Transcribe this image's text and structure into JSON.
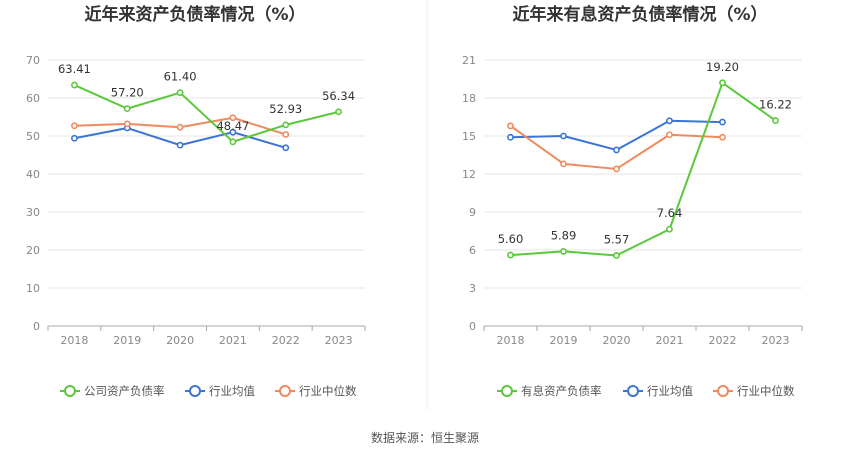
{
  "source_label": "数据来源：恒生聚源",
  "chart_data": [
    {
      "type": "line",
      "title": "近年来资产负债率情况（%）",
      "x": [
        "2018",
        "2019",
        "2020",
        "2021",
        "2022",
        "2023"
      ],
      "ylim": [
        0,
        70
      ],
      "yticks": [
        "0",
        "10",
        "20",
        "30",
        "40",
        "50",
        "60",
        "70"
      ],
      "grid": true,
      "legend_position": "bottom",
      "series": [
        {
          "name": "公司资产负债率",
          "color": "#5ac83a",
          "values": [
            63.41,
            57.2,
            61.4,
            48.47,
            52.93,
            56.34
          ],
          "labels": [
            "63.41",
            "57.20",
            "61.40",
            "48.47",
            "52.93",
            "56.34"
          ]
        },
        {
          "name": "行业均值",
          "color": "#3b74d6",
          "values": [
            49.4,
            52.1,
            47.6,
            51.0,
            46.9,
            null
          ]
        },
        {
          "name": "行业中位数",
          "color": "#ef8a5e",
          "values": [
            52.7,
            53.2,
            52.3,
            54.8,
            50.4,
            null
          ]
        }
      ]
    },
    {
      "type": "line",
      "title": "近年来有息资产负债率情况（%）",
      "x": [
        "2018",
        "2019",
        "2020",
        "2021",
        "2022",
        "2023"
      ],
      "ylim": [
        0,
        21
      ],
      "yticks": [
        "0",
        "3",
        "6",
        "9",
        "12",
        "15",
        "18",
        "21"
      ],
      "grid": true,
      "legend_position": "bottom",
      "series": [
        {
          "name": "有息资产负债率",
          "color": "#5ac83a",
          "values": [
            5.6,
            5.89,
            5.57,
            7.64,
            19.2,
            16.22
          ],
          "labels": [
            "5.60",
            "5.89",
            "5.57",
            "7.64",
            "19.20",
            "16.22"
          ]
        },
        {
          "name": "行业均值",
          "color": "#3b74d6",
          "values": [
            14.9,
            15.0,
            13.9,
            16.2,
            16.1,
            null
          ]
        },
        {
          "name": "行业中位数",
          "color": "#ef8a5e",
          "values": [
            15.8,
            12.8,
            12.4,
            15.1,
            14.9,
            null
          ]
        }
      ]
    }
  ]
}
